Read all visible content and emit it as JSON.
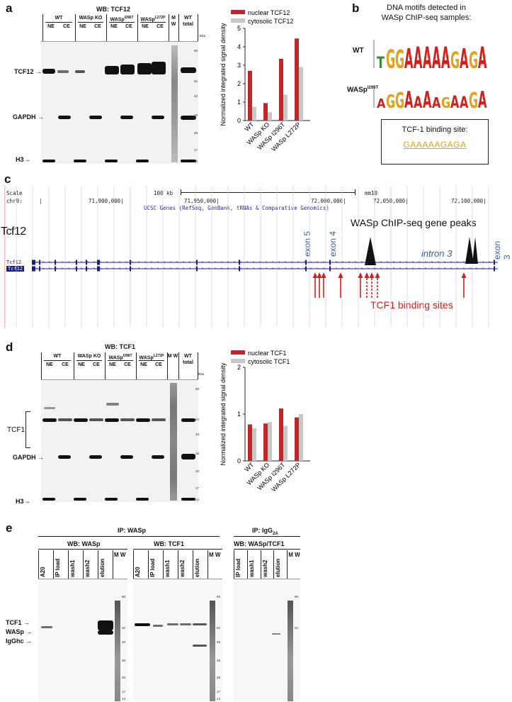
{
  "panels": {
    "a": {
      "letter": "a",
      "title": "WB: TCF12",
      "groups": [
        "WT",
        "WASp KO",
        "WASp",
        "WASp",
        "M W",
        "WT total"
      ],
      "group_supers": [
        "I296T",
        "L272P"
      ],
      "subl": [
        "NE",
        "CE",
        "NE",
        "CE",
        "NE",
        "CE",
        "NE",
        "CE"
      ],
      "rows": [
        "TCF12",
        "GAPDH",
        "H3"
      ],
      "mw_unit": "kDa",
      "mw": [
        "98",
        "62",
        "49",
        "38",
        "28",
        "17",
        "14"
      ]
    },
    "b": {
      "letter": "b",
      "title_line1": "DNA motifs detected in",
      "title_line2": "WASp ChIP-seq samples:",
      "wt_label": "WT",
      "mut_label": "WASp",
      "mut_super": "I296T",
      "wt_motif": "TGGAAAAAGAGA",
      "mut_motif": "AGGAAAAGAAGA",
      "box_title": "TCF-1 binding site:",
      "box_seq": "GAAAAAGAGA"
    },
    "c": {
      "letter": "c",
      "scale_label": "Scale",
      "chr_label": "chr9:",
      "scale_bar": "100 kb",
      "genome": "mm10",
      "coords": [
        "71,900,000|",
        "71,950,000|",
        "72,000,000|",
        "72,050,000|",
        "72,100,000|"
      ],
      "track_name": "UCSC Genes (RefSeq, GenBank, tRNAs & Comparative Genomics)",
      "gene": "Tcf12",
      "track1": "Tcf12",
      "track2": "Tcf12",
      "exon5": "exon 5",
      "exon4": "exon 4",
      "exon3": "exon 3",
      "intron": "intron 3",
      "peaks_label": "WASp ChIP-seq gene peaks",
      "sites_label": "TCF1 binding sites"
    },
    "d": {
      "letter": "d",
      "title": "WB: TCF1",
      "groups": [
        "WT",
        "WASp KO",
        "WASp",
        "WASp",
        "M W",
        "WT total"
      ],
      "group_supers": [
        "I296T",
        "L272P"
      ],
      "subl": [
        "NE",
        "CE",
        "NE",
        "CE",
        "NE",
        "CE",
        "NE",
        "CE"
      ],
      "rows": [
        "TCF1",
        "GAPDH",
        "H3"
      ],
      "mw_unit": "kDa",
      "mw": [
        "98",
        "62",
        "49",
        "38",
        "28",
        "17",
        "14"
      ]
    },
    "e": {
      "letter": "e",
      "ip_wasp": "IP: WASp",
      "ip_igg": "IP: IgG",
      "ip_igg_sub": "2A",
      "wb1": "WB: WASp",
      "wb2": "WB: TCF1",
      "wb3": "WB: WASp/TCF1",
      "lanes1": [
        "A20",
        "IP load",
        "wash1",
        "wash2",
        "elution",
        "M W"
      ],
      "lanes2": [
        "A20",
        "IP load",
        "wash1",
        "wash2",
        "elution",
        "M W"
      ],
      "lanes3": [
        "IP load",
        "wash1",
        "wash2",
        "elution",
        "M W"
      ],
      "rows": [
        "TCF1",
        "WASp",
        "IgGhc"
      ],
      "mw_unit": "kDa",
      "mw": [
        "98",
        "62",
        "49",
        "38",
        "28",
        "17",
        "14"
      ]
    }
  },
  "colors": {
    "nuclear": "#c0272d",
    "cytosolic": "#c8c8c8",
    "motif_a": "#d4201c",
    "motif_g": "#e0a31a",
    "motif_t": "#2f8f2f",
    "motif_c": "#2b55b5",
    "track_blue": "#1a1a8c",
    "arrow_red": "#d4201c"
  },
  "chart_data": [
    {
      "type": "bar",
      "categories": [
        "WT",
        "WASp KO",
        "WASp I296T",
        "WASp L272P"
      ],
      "series": [
        {
          "name": "nuclear TCF12",
          "values": [
            2.7,
            0.95,
            3.35,
            4.45
          ]
        },
        {
          "name": "cytosolic TCF12",
          "values": [
            0.75,
            0.45,
            1.4,
            2.9
          ]
        }
      ],
      "ylabel": "Normalized integrated signal density",
      "ylim": [
        0,
        5
      ],
      "yticks": [
        "0",
        "1",
        "2",
        "3",
        "4",
        "5"
      ],
      "legend": "top"
    },
    {
      "type": "bar",
      "categories": [
        "WT",
        "WASp KO",
        "WASp I296T",
        "WASp L272P"
      ],
      "series": [
        {
          "name": "nuclear TCF1",
          "values": [
            0.78,
            0.8,
            1.12,
            0.93
          ]
        },
        {
          "name": "cytosolic TCF1",
          "values": [
            0.7,
            0.83,
            0.75,
            1.0
          ]
        }
      ],
      "ylabel": "Normalized integrated signal density",
      "ylim": [
        0,
        2
      ],
      "yticks": [
        "0",
        "1",
        "2"
      ],
      "legend": "top"
    }
  ]
}
